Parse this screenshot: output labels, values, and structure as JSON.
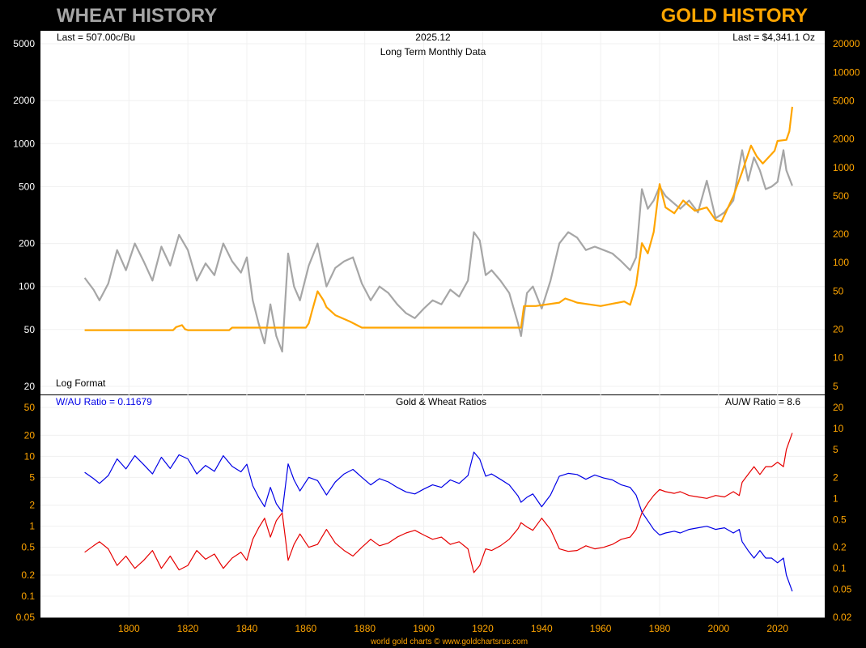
{
  "header": {
    "left_title": "WHEAT HISTORY",
    "right_title": "GOLD HISTORY"
  },
  "top_panel": {
    "last_wheat": "Last = 507.00c/Bu",
    "date": "2025.12",
    "subtitle": "Long Term Monthly Data",
    "last_gold": "Last = $4,341.1 Oz",
    "scale_note": "Log Format"
  },
  "bottom_panel": {
    "wau_label": "W/AU Ratio = 0.11679",
    "title": "Gold & Wheat Ratios",
    "auw_label": "AU/W Ratio = 8.6"
  },
  "footer": "world gold charts © www.goldchartsrus.com",
  "colors": {
    "wheat": "#a6a6a6",
    "gold": "#ffa500",
    "wau": "#0000e6",
    "auw": "#e60000",
    "tick": "#ffa500"
  },
  "chart_data": [
    {
      "type": "line",
      "title": "Long Term Monthly Data",
      "scale": "log",
      "x_ticks": [
        "1800",
        "1820",
        "1840",
        "1860",
        "1880",
        "1900",
        "1920",
        "1940",
        "1960",
        "1980",
        "2000",
        "2020"
      ],
      "xlim": [
        1770,
        2036
      ],
      "y_left_ticks": [
        "5000",
        "2000",
        "1000",
        "500",
        "200",
        "100",
        "50",
        "20"
      ],
      "y_left_lim": [
        20,
        5000
      ],
      "y_right_ticks": [
        "20000",
        "10000",
        "5000",
        "2000",
        "1000",
        "500",
        "200",
        "100",
        "50",
        "20",
        "10",
        "5"
      ],
      "y_right_lim": [
        5,
        20000
      ],
      "series": [
        {
          "name": "Wheat (c/Bu)",
          "axis": "left",
          "x": [
            1785,
            1788,
            1790,
            1793,
            1796,
            1799,
            1802,
            1805,
            1808,
            1811,
            1814,
            1817,
            1820,
            1823,
            1826,
            1829,
            1832,
            1835,
            1838,
            1840,
            1842,
            1844,
            1846,
            1848,
            1850,
            1852,
            1854,
            1856,
            1858,
            1861,
            1864,
            1867,
            1870,
            1873,
            1876,
            1879,
            1882,
            1885,
            1888,
            1891,
            1894,
            1897,
            1900,
            1903,
            1906,
            1909,
            1912,
            1915,
            1917,
            1919,
            1921,
            1923,
            1926,
            1929,
            1932,
            1933,
            1935,
            1937,
            1940,
            1943,
            1946,
            1949,
            1952,
            1955,
            1958,
            1961,
            1964,
            1967,
            1970,
            1972,
            1974,
            1976,
            1978,
            1980,
            1982,
            1985,
            1987,
            1990,
            1993,
            1996,
            1999,
            2002,
            2005,
            2007,
            2008,
            2010,
            2012,
            2014,
            2016,
            2018,
            2020,
            2022,
            2023,
            2025
          ],
          "values": [
            115,
            95,
            80,
            105,
            180,
            130,
            200,
            150,
            110,
            190,
            140,
            230,
            180,
            110,
            145,
            120,
            200,
            150,
            125,
            160,
            80,
            55,
            40,
            75,
            45,
            35,
            170,
            100,
            80,
            140,
            200,
            100,
            135,
            150,
            160,
            105,
            80,
            100,
            90,
            75,
            65,
            60,
            70,
            80,
            75,
            95,
            85,
            110,
            240,
            210,
            120,
            130,
            110,
            90,
            55,
            45,
            90,
            100,
            70,
            110,
            200,
            240,
            220,
            180,
            190,
            180,
            170,
            150,
            130,
            160,
            480,
            350,
            400,
            500,
            430,
            380,
            350,
            400,
            330,
            550,
            300,
            330,
            400,
            700,
            900,
            550,
            800,
            650,
            480,
            500,
            540,
            900,
            650,
            507
          ]
        },
        {
          "name": "Gold ($/Oz)",
          "axis": "right",
          "x": [
            1785,
            1815,
            1816,
            1818,
            1819,
            1820,
            1834,
            1835,
            1847,
            1848,
            1860,
            1861,
            1862,
            1864,
            1866,
            1867,
            1870,
            1875,
            1879,
            1933,
            1934,
            1938,
            1946,
            1948,
            1950,
            1952,
            1960,
            1968,
            1970,
            1972,
            1974,
            1976,
            1978,
            1980,
            1982,
            1985,
            1988,
            1992,
            1996,
            1999,
            2001,
            2005,
            2008,
            2011,
            2013,
            2015,
            2019,
            2020,
            2023,
            2024,
            2025
          ],
          "values": [
            19.5,
            19.5,
            21,
            22,
            20,
            19.5,
            19.5,
            20.7,
            20.7,
            20.7,
            20.7,
            23,
            30,
            50,
            40,
            34,
            28,
            24,
            20.7,
            20.7,
            35,
            35,
            38,
            42,
            40,
            38,
            35,
            39,
            36,
            58,
            160,
            125,
            210,
            670,
            380,
            330,
            450,
            350,
            380,
            280,
            270,
            500,
            900,
            1700,
            1300,
            1100,
            1500,
            1900,
            1950,
            2400,
            4341
          ]
        }
      ]
    },
    {
      "type": "line",
      "title": "Gold & Wheat Ratios",
      "scale": "log",
      "x_ticks": [
        "1800",
        "1820",
        "1840",
        "1860",
        "1880",
        "1900",
        "1920",
        "1940",
        "1960",
        "1980",
        "2000",
        "2020"
      ],
      "xlim": [
        1770,
        2036
      ],
      "y_left_ticks": [
        "50",
        "20",
        "10",
        "5",
        "2",
        "1",
        "0.5",
        "0.2",
        "0.1",
        "0.05"
      ],
      "y_left_lim": [
        0.05,
        50
      ],
      "y_right_ticks": [
        "20",
        "10",
        "5",
        "2",
        "1",
        "0.5",
        "0.2",
        "0.1",
        "0.05",
        "0.02"
      ],
      "y_right_lim": [
        0.02,
        20
      ],
      "series": [
        {
          "name": "W/AU Ratio",
          "axis": "left",
          "x": [
            1785,
            1788,
            1790,
            1793,
            1796,
            1799,
            1802,
            1805,
            1808,
            1811,
            1814,
            1817,
            1820,
            1823,
            1826,
            1829,
            1832,
            1835,
            1838,
            1840,
            1842,
            1844,
            1846,
            1848,
            1850,
            1852,
            1854,
            1856,
            1858,
            1861,
            1864,
            1867,
            1870,
            1873,
            1876,
            1879,
            1882,
            1885,
            1888,
            1891,
            1894,
            1897,
            1900,
            1903,
            1906,
            1909,
            1912,
            1915,
            1917,
            1919,
            1921,
            1923,
            1926,
            1929,
            1932,
            1933,
            1935,
            1937,
            1940,
            1943,
            1946,
            1949,
            1952,
            1955,
            1958,
            1961,
            1964,
            1967,
            1970,
            1972,
            1974,
            1976,
            1978,
            1980,
            1982,
            1985,
            1987,
            1990,
            1993,
            1996,
            1999,
            2002,
            2005,
            2007,
            2008,
            2010,
            2012,
            2014,
            2016,
            2018,
            2020,
            2022,
            2023,
            2025
          ],
          "values": [
            5.9,
            4.8,
            4.1,
            5.3,
            9.2,
            6.6,
            10.2,
            7.6,
            5.6,
            9.7,
            6.7,
            10.5,
            9.2,
            5.6,
            7.4,
            6.1,
            10.2,
            7.2,
            6.0,
            7.7,
            3.8,
            2.6,
            1.9,
            3.6,
            2.1,
            1.6,
            7.8,
            4.6,
            3.2,
            5.0,
            4.5,
            2.8,
            4.3,
            5.6,
            6.5,
            5.0,
            3.9,
            4.8,
            4.3,
            3.6,
            3.1,
            2.9,
            3.4,
            3.9,
            3.6,
            4.6,
            4.1,
            5.3,
            11.5,
            9.1,
            5.2,
            5.6,
            4.7,
            3.9,
            2.7,
            2.2,
            2.6,
            2.9,
            1.9,
            2.8,
            5.2,
            5.7,
            5.5,
            4.7,
            5.4,
            4.9,
            4.6,
            3.9,
            3.6,
            2.8,
            1.6,
            1.2,
            0.9,
            0.75,
            0.8,
            0.85,
            0.8,
            0.9,
            0.95,
            1.0,
            0.9,
            0.95,
            0.8,
            0.9,
            0.6,
            0.45,
            0.35,
            0.45,
            0.35,
            0.35,
            0.3,
            0.35,
            0.2,
            0.117
          ]
        },
        {
          "name": "AU/W Ratio",
          "axis": "right",
          "x": [
            1785,
            1788,
            1790,
            1793,
            1796,
            1799,
            1802,
            1805,
            1808,
            1811,
            1814,
            1817,
            1820,
            1823,
            1826,
            1829,
            1832,
            1835,
            1838,
            1840,
            1842,
            1844,
            1846,
            1848,
            1850,
            1852,
            1854,
            1856,
            1858,
            1861,
            1864,
            1867,
            1870,
            1873,
            1876,
            1879,
            1882,
            1885,
            1888,
            1891,
            1894,
            1897,
            1900,
            1903,
            1906,
            1909,
            1912,
            1915,
            1917,
            1919,
            1921,
            1923,
            1926,
            1929,
            1932,
            1933,
            1935,
            1937,
            1940,
            1943,
            1946,
            1949,
            1952,
            1955,
            1958,
            1961,
            1964,
            1967,
            1970,
            1972,
            1974,
            1976,
            1978,
            1980,
            1982,
            1985,
            1987,
            1990,
            1993,
            1996,
            1999,
            2002,
            2005,
            2007,
            2008,
            2010,
            2012,
            2014,
            2016,
            2018,
            2020,
            2022,
            2023,
            2025
          ],
          "values": [
            0.17,
            0.21,
            0.24,
            0.19,
            0.11,
            0.15,
            0.1,
            0.13,
            0.18,
            0.1,
            0.15,
            0.095,
            0.11,
            0.18,
            0.135,
            0.16,
            0.1,
            0.14,
            0.17,
            0.13,
            0.26,
            0.38,
            0.52,
            0.28,
            0.48,
            0.62,
            0.13,
            0.22,
            0.31,
            0.2,
            0.22,
            0.36,
            0.23,
            0.18,
            0.15,
            0.2,
            0.26,
            0.21,
            0.23,
            0.28,
            0.32,
            0.35,
            0.3,
            0.26,
            0.28,
            0.22,
            0.24,
            0.19,
            0.087,
            0.11,
            0.19,
            0.18,
            0.21,
            0.26,
            0.37,
            0.45,
            0.39,
            0.35,
            0.52,
            0.36,
            0.19,
            0.175,
            0.18,
            0.21,
            0.19,
            0.2,
            0.22,
            0.26,
            0.28,
            0.36,
            0.62,
            0.85,
            1.1,
            1.34,
            1.25,
            1.18,
            1.25,
            1.1,
            1.05,
            1.0,
            1.1,
            1.05,
            1.25,
            1.1,
            1.7,
            2.2,
            2.85,
            2.2,
            2.85,
            2.85,
            3.3,
            2.85,
            5.0,
            8.6
          ]
        }
      ]
    }
  ]
}
